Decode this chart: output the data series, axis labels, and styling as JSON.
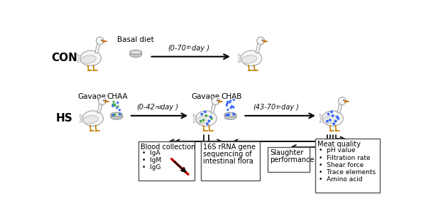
{
  "bg_color": "#ffffff",
  "fig_width": 6.0,
  "fig_height": 3.11,
  "dpi": 100,
  "con_label": "CON",
  "hs_label": "HS",
  "basal_diet_label": "Basal diet",
  "gavage_label1": "Gavage",
  "chaa_label": "CHAA",
  "gavage_label2": "Gavage",
  "chab_label": "CHAB",
  "con_arrow_text": "(0-70",
  "con_arrow_sup": "th",
  "con_arrow_text2": " day )",
  "hs_arrow1_text": "(0-42",
  "hs_arrow1_sup": "nd",
  "hs_arrow1_text2": " day )",
  "hs_arrow2_text": "(43-70",
  "hs_arrow2_sup": "th",
  "hs_arrow2_text2": " day )",
  "box1_title": "Blood collection",
  "box1_items": [
    "IgA",
    "IgM",
    "IgG"
  ],
  "box2_line1": "16S rRNA gene",
  "box2_line2": "sequencing of",
  "box2_line3": "intestinal flora",
  "box3_line1": "Slaughter",
  "box3_line2": "performance",
  "box4_title": "Meat quality",
  "box4_items": [
    "pH value",
    "Filtration rate",
    "Shear force",
    "Trace elements",
    "Amino acid"
  ],
  "sfs": 7.0,
  "title_fs": 11
}
